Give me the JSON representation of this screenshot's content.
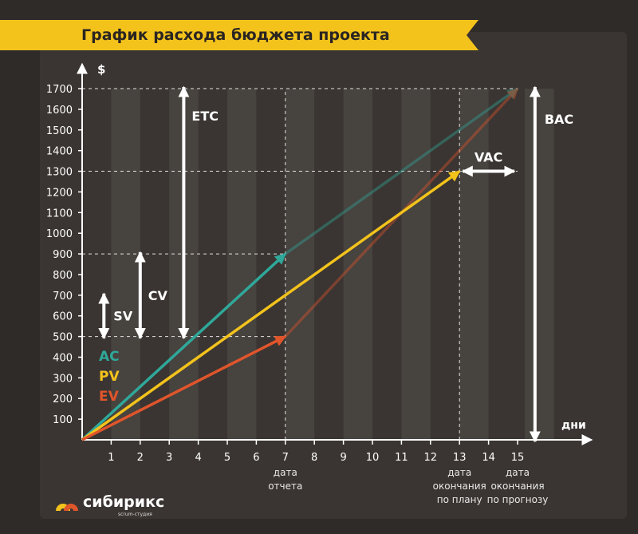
{
  "title": "График расхода бюджета проекта",
  "brand": {
    "name": "сибирикс",
    "subtitle": "scrum-студия"
  },
  "chart_data": {
    "type": "line",
    "title": "График расхода бюджета проекта",
    "xlabel": "дни",
    "ylabel": "$",
    "xlim": [
      0,
      15
    ],
    "ylim": [
      0,
      1700
    ],
    "x_ticks": [
      1,
      2,
      3,
      4,
      5,
      6,
      7,
      8,
      9,
      10,
      11,
      12,
      13,
      14,
      15
    ],
    "y_ticks": [
      100,
      200,
      300,
      400,
      500,
      600,
      700,
      800,
      900,
      1000,
      1100,
      1200,
      1300,
      1400,
      1500,
      1600,
      1700
    ],
    "series": [
      {
        "name": "AC",
        "color": "#2fa89a",
        "x": [
          0,
          7
        ],
        "y": [
          0,
          900
        ],
        "projection": {
          "x": [
            7,
            15
          ],
          "y": [
            900,
            1700
          ]
        }
      },
      {
        "name": "PV",
        "color": "#f3c31c",
        "x": [
          0,
          13
        ],
        "y": [
          0,
          1300
        ]
      },
      {
        "name": "EV",
        "color": "#e1552b",
        "x": [
          0,
          7
        ],
        "y": [
          0,
          500
        ],
        "projection": {
          "x": [
            7,
            15
          ],
          "y": [
            500,
            1700
          ]
        }
      }
    ],
    "x_annotations": [
      {
        "x": 7,
        "lines": [
          "дата",
          "отчета"
        ]
      },
      {
        "x": 13,
        "lines": [
          "дата",
          "окончания",
          "по плану"
        ]
      },
      {
        "x": 15,
        "lines": [
          "дата",
          "окончания",
          "по прогнозу"
        ]
      }
    ],
    "measures": [
      {
        "label": "SV",
        "x": 0.75,
        "y_from": 500,
        "y_to": 700
      },
      {
        "label": "CV",
        "x": 2.0,
        "y_from": 500,
        "y_to": 900
      },
      {
        "label": "ETC",
        "x": 3.5,
        "y_from": 500,
        "y_to": 1700
      },
      {
        "label": "BAC",
        "x": 15.6,
        "y_from": 0,
        "y_to": 1700
      },
      {
        "label": "VAC",
        "orientation": "horizontal",
        "y": 1300,
        "x_from": 13,
        "x_to": 15
      }
    ],
    "reference_lines": [
      {
        "y": 500,
        "x_to": 7
      },
      {
        "y": 900,
        "x_to": 7
      },
      {
        "y": 1300,
        "x_to": 15
      },
      {
        "y": 1700,
        "x_to": 15
      },
      {
        "x": 7,
        "y_to": 1700
      },
      {
        "x": 13,
        "y_to": 1700
      }
    ],
    "grid": false,
    "legend": "left"
  },
  "colors": {
    "background": "#2f2b29",
    "panel": "#3a3532",
    "banner": "#f3c31c",
    "stripe": "#4a4542",
    "axis": "#ffffff",
    "logo_red": "#e1552b",
    "logo_yellow": "#f3c31c"
  }
}
